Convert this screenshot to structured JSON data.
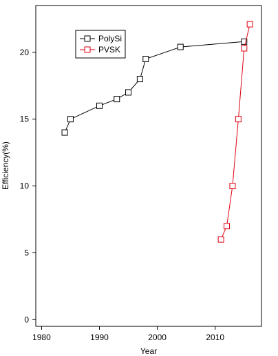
{
  "chart_data": {
    "type": "line",
    "xlabel": "Year",
    "ylabel": "Efficiency(%)",
    "xlim": [
      1979,
      2018
    ],
    "ylim": [
      -0.5,
      23.5
    ],
    "xticks": [
      1980,
      1990,
      2000,
      2010
    ],
    "yticks": [
      0,
      5,
      10,
      15,
      20
    ],
    "grid": false,
    "legend_position": "top-left",
    "series": [
      {
        "name": "PolySi",
        "color": "#000000",
        "marker": "open-square",
        "x": [
          1984,
          1985,
          1990,
          1993,
          1995,
          1997,
          1998,
          2004,
          2015
        ],
        "y": [
          14.0,
          15.0,
          16.0,
          16.5,
          17.0,
          18.0,
          19.5,
          20.4,
          20.8
        ]
      },
      {
        "name": "PVSK",
        "color": "#e0000f",
        "marker": "open-square",
        "x": [
          2011,
          2012,
          2013,
          2014,
          2015,
          2016
        ],
        "y": [
          6.0,
          7.0,
          10.0,
          15.0,
          20.3,
          22.1
        ]
      }
    ]
  }
}
